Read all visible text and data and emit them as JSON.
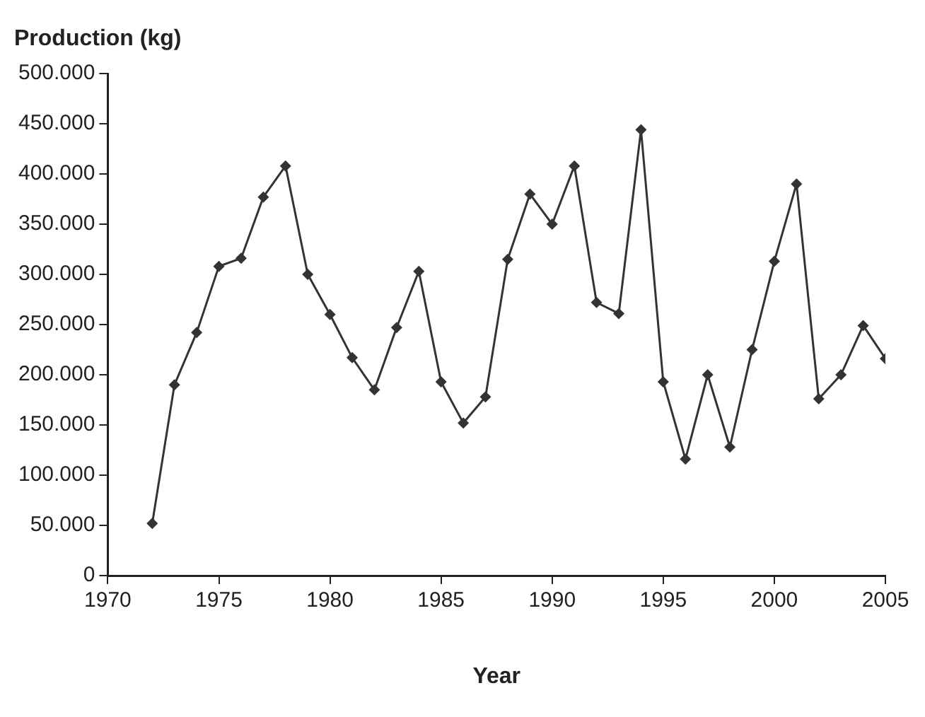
{
  "chart_data": {
    "type": "line",
    "ylabel": "Production (kg)",
    "xlabel": "Year",
    "x": [
      1972,
      1973,
      1974,
      1975,
      1976,
      1977,
      1978,
      1979,
      1980,
      1981,
      1982,
      1983,
      1984,
      1985,
      1986,
      1987,
      1988,
      1989,
      1990,
      1991,
      1992,
      1993,
      1994,
      1995,
      1996,
      1997,
      1998,
      1999,
      2000,
      2001,
      2002,
      2003,
      2004,
      2005
    ],
    "series": [
      {
        "color": "#333333",
        "values": [
          52000,
          190000,
          242000,
          308000,
          316000,
          377000,
          408000,
          300000,
          260000,
          217000,
          185000,
          247000,
          303000,
          193000,
          152000,
          178000,
          315000,
          380000,
          350000,
          408000,
          272000,
          261000,
          444000,
          193000,
          116000,
          200000,
          128000,
          225000,
          313000,
          390000,
          176000,
          200000,
          249000,
          216000
        ]
      }
    ],
    "xlim": [
      1970,
      2005
    ],
    "xticks": [
      1970,
      1975,
      1980,
      1985,
      1990,
      1995,
      2000,
      2005
    ],
    "ylim": [
      0,
      500000
    ],
    "yticks": [
      0,
      {
        "value": 50000,
        "label": "50.000"
      },
      {
        "value": 100000,
        "label": "100.000"
      },
      {
        "value": 150000,
        "label": "150.000"
      },
      {
        "value": 200000,
        "label": "200.000"
      },
      {
        "value": 250000,
        "label": "250.000"
      },
      {
        "value": 300000,
        "label": "300.000"
      },
      {
        "value": 350000,
        "label": "350.000"
      },
      {
        "value": 400000,
        "label": "400.000"
      },
      {
        "value": 450000,
        "label": "450.000"
      },
      {
        "value": 500000,
        "label": "500.000"
      }
    ],
    "grid": false,
    "legend": false,
    "marker": "diamond",
    "line_style": "solid"
  }
}
